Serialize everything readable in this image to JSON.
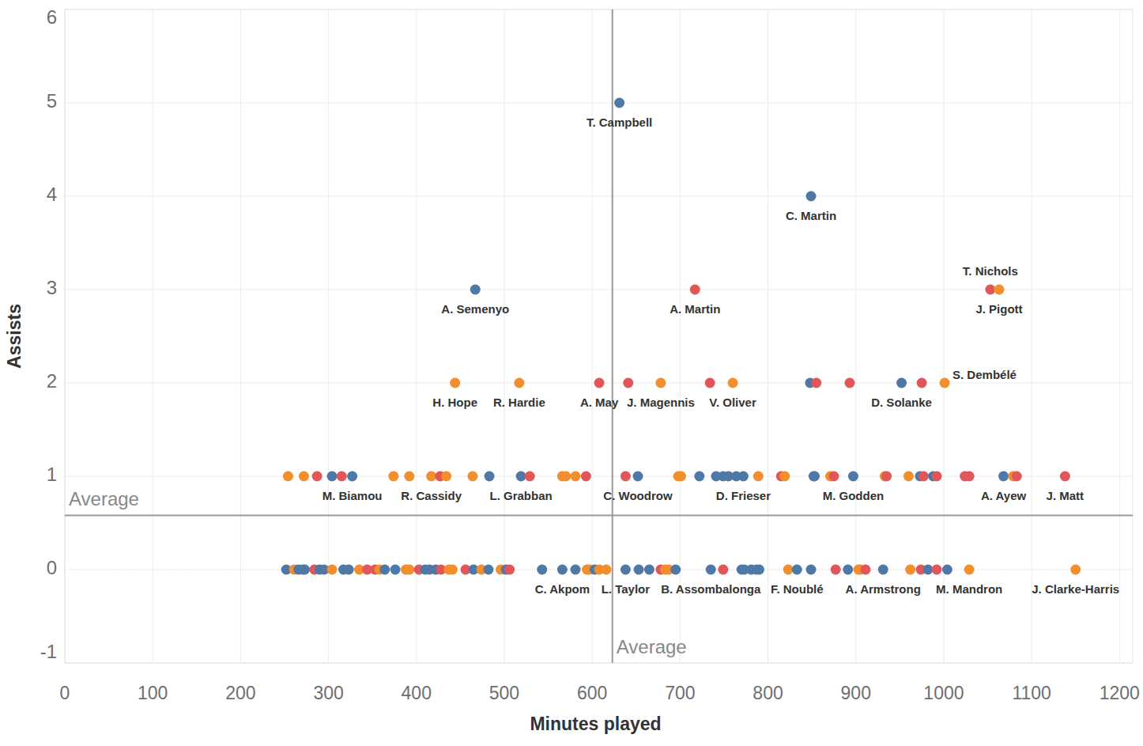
{
  "chart_data": {
    "type": "scatter",
    "x_label": "Minutes played",
    "y_label": "Assists",
    "xlim": [
      0,
      1215
    ],
    "ylim": [
      -1,
      6
    ],
    "xticks": [
      0,
      100,
      200,
      300,
      400,
      500,
      600,
      700,
      800,
      900,
      1000,
      1100,
      1200
    ],
    "yticks": [
      -1,
      0,
      1,
      2,
      3,
      4,
      5,
      6
    ],
    "grid": true,
    "marker": "circle",
    "reference_lines": [
      {
        "axis": "x",
        "value": 623,
        "label": "Average"
      },
      {
        "axis": "y",
        "value": 0.58,
        "label": "Average"
      }
    ],
    "x": [
      631,
      849,
      467,
      717,
      1053,
      1063,
      444,
      517,
      608,
      641,
      678,
      734,
      760,
      848,
      855,
      893,
      952,
      975,
      1001,
      254,
      272,
      287,
      304,
      315,
      327,
      374,
      392,
      417,
      427,
      434,
      464,
      483,
      519,
      529,
      566,
      570,
      581,
      593,
      638,
      652,
      698,
      701,
      722,
      741,
      749,
      755,
      764,
      772,
      789,
      815,
      819,
      852,
      853,
      871,
      875,
      897,
      933,
      935,
      960,
      973,
      977,
      988,
      992,
      1024,
      1029,
      1068,
      1079,
      1083,
      1138,
      252,
      261,
      266,
      271,
      273,
      284,
      290,
      295,
      304,
      317,
      323,
      335,
      344,
      353,
      358,
      364,
      376,
      388,
      392,
      403,
      410,
      415,
      422,
      428,
      437,
      441,
      456,
      465,
      474,
      482,
      496,
      502,
      506,
      543,
      566,
      581,
      594,
      597,
      603,
      608,
      616,
      638,
      653,
      665,
      678,
      683,
      687,
      695,
      735,
      749,
      770,
      773,
      781,
      787,
      790,
      823,
      833,
      849,
      877,
      891,
      903,
      905,
      911,
      931,
      962,
      974,
      982,
      992,
      1004,
      1029,
      1150
    ],
    "values": [
      5,
      4,
      3,
      3,
      3,
      3,
      2,
      2,
      2,
      2,
      2,
      2,
      2,
      2,
      2,
      2,
      2,
      2,
      2,
      1,
      1,
      1,
      1,
      1,
      1,
      1,
      1,
      1,
      1,
      1,
      1,
      1,
      1,
      1,
      1,
      1,
      1,
      1,
      1,
      1,
      1,
      1,
      1,
      1,
      1,
      1,
      1,
      1,
      1,
      1,
      1,
      1,
      1,
      1,
      1,
      1,
      1,
      1,
      1,
      1,
      1,
      1,
      1,
      1,
      1,
      1,
      1,
      1,
      1,
      0,
      0,
      0,
      0,
      0,
      0,
      0,
      0,
      0,
      0,
      0,
      0,
      0,
      0,
      0,
      0,
      0,
      0,
      0,
      0,
      0,
      0,
      0,
      0,
      0,
      0,
      0,
      0,
      0,
      0,
      0,
      0,
      0,
      0,
      0,
      0,
      0,
      0,
      0,
      0,
      0,
      0,
      0,
      0,
      0,
      0,
      0,
      0,
      0,
      0,
      0,
      0,
      0,
      0,
      0,
      0,
      0,
      0,
      0,
      0,
      0,
      0,
      0,
      0,
      0,
      0,
      0,
      0,
      0,
      0,
      0
    ],
    "colors": [
      "#4e79a7",
      "#4e79a7",
      "#4e79a7",
      "#e15759",
      "#e15759",
      "#f28e2b",
      "#f28e2b",
      "#f28e2b",
      "#e15759",
      "#e15759",
      "#f28e2b",
      "#e15759",
      "#f28e2b",
      "#4e79a7",
      "#e15759",
      "#e15759",
      "#4e79a7",
      "#e15759",
      "#f28e2b",
      "#f28e2b",
      "#f28e2b",
      "#e15759",
      "#4e79a7",
      "#e15759",
      "#4e79a7",
      "#f28e2b",
      "#f28e2b",
      "#f28e2b",
      "#e15759",
      "#f28e2b",
      "#f28e2b",
      "#4e79a7",
      "#4e79a7",
      "#e15759",
      "#f28e2b",
      "#f28e2b",
      "#f28e2b",
      "#e15759",
      "#e15759",
      "#4e79a7",
      "#f28e2b",
      "#f28e2b",
      "#4e79a7",
      "#4e79a7",
      "#4e79a7",
      "#4e79a7",
      "#4e79a7",
      "#4e79a7",
      "#f28e2b",
      "#e15759",
      "#f28e2b",
      "#4e79a7",
      "#4e79a7",
      "#f28e2b",
      "#e15759",
      "#4e79a7",
      "#f28e2b",
      "#e15759",
      "#f28e2b",
      "#4e79a7",
      "#e15759",
      "#4e79a7",
      "#e15759",
      "#e15759",
      "#e15759",
      "#4e79a7",
      "#f28e2b",
      "#e15759",
      "#e15759",
      "#4e79a7",
      "#f28e2b",
      "#4e79a7",
      "#4e79a7",
      "#4e79a7",
      "#e15759",
      "#4e79a7",
      "#4e79a7",
      "#f28e2b",
      "#4e79a7",
      "#4e79a7",
      "#f28e2b",
      "#e15759",
      "#e15759",
      "#f28e2b",
      "#4e79a7",
      "#4e79a7",
      "#f28e2b",
      "#f28e2b",
      "#e15759",
      "#4e79a7",
      "#4e79a7",
      "#4e79a7",
      "#e15759",
      "#f28e2b",
      "#f28e2b",
      "#e15759",
      "#4e79a7",
      "#f28e2b",
      "#4e79a7",
      "#f28e2b",
      "#4e79a7",
      "#e15759",
      "#4e79a7",
      "#4e79a7",
      "#4e79a7",
      "#f28e2b",
      "#f28e2b",
      "#4e79a7",
      "#f28e2b",
      "#f28e2b",
      "#4e79a7",
      "#4e79a7",
      "#4e79a7",
      "#e15759",
      "#f28e2b",
      "#f28e2b",
      "#4e79a7",
      "#4e79a7",
      "#e15759",
      "#4e79a7",
      "#4e79a7",
      "#4e79a7",
      "#4e79a7",
      "#4e79a7",
      "#f28e2b",
      "#4e79a7",
      "#4e79a7",
      "#e15759",
      "#4e79a7",
      "#f28e2b",
      "#f28e2b",
      "#e15759",
      "#4e79a7",
      "#f28e2b",
      "#e15759",
      "#4e79a7",
      "#e15759",
      "#4e79a7",
      "#f28e2b",
      "#f28e2b"
    ],
    "labels": [
      "T. Campbell",
      "C. Martin",
      "A. Semenyo",
      "A. Martin",
      "T. Nichols",
      "J. Pigott",
      "H. Hope",
      "R. Hardie",
      "A. May",
      null,
      "J. Magennis",
      null,
      "V. Oliver",
      null,
      null,
      null,
      "D. Solanke",
      null,
      "S. Dembélé",
      null,
      null,
      null,
      null,
      null,
      "M. Biamou",
      null,
      null,
      "R. Cassidy",
      null,
      null,
      null,
      null,
      "L. Grabban",
      null,
      null,
      null,
      null,
      null,
      null,
      "C. Woodrow",
      null,
      null,
      null,
      null,
      null,
      null,
      null,
      "D. Frieser",
      null,
      null,
      null,
      null,
      null,
      null,
      null,
      "M. Godden",
      null,
      null,
      null,
      null,
      null,
      null,
      null,
      null,
      null,
      "A. Ayew",
      null,
      null,
      "J. Matt",
      null,
      null,
      null,
      null,
      null,
      null,
      null,
      null,
      null,
      null,
      null,
      null,
      null,
      null,
      null,
      null,
      null,
      null,
      null,
      null,
      null,
      null,
      null,
      null,
      null,
      null,
      null,
      null,
      null,
      null,
      null,
      null,
      null,
      null,
      "C. Akpom",
      null,
      null,
      null,
      null,
      null,
      null,
      "L. Taylor",
      null,
      null,
      null,
      null,
      null,
      null,
      "B. Assombalonga",
      null,
      null,
      null,
      null,
      null,
      null,
      null,
      "F. Noublé",
      null,
      null,
      null,
      null,
      null,
      null,
      "A. Armstrong",
      null,
      null,
      null,
      null,
      null,
      "M. Mandron",
      "J. Clarke-Harris"
    ]
  }
}
